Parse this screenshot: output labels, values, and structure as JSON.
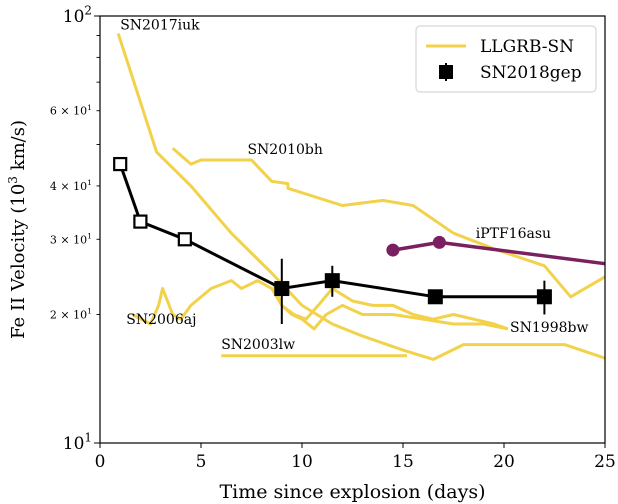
{
  "chart_data": {
    "type": "line",
    "xlabel": "Time since explosion (days)",
    "ylabel": "Fe II Velocity (10³ km/s)",
    "xlim": [
      0,
      25
    ],
    "ylim": [
      10,
      100
    ],
    "yscale": "log",
    "grid": false,
    "legend_position": "top-right",
    "x_ticks": [
      0,
      5,
      10,
      15,
      20,
      25
    ],
    "x_tick_labels": [
      "0",
      "5",
      "10",
      "15",
      "20",
      "25"
    ],
    "y_major_ticks": [
      10,
      100
    ],
    "y_major_labels": [
      {
        "base": "10",
        "exp": "1"
      },
      {
        "base": "10",
        "exp": "2"
      }
    ],
    "y_minor_ticks": [
      20,
      30,
      40,
      50,
      60,
      70,
      80,
      90
    ],
    "y_minor_labels": [
      {
        "value": 20,
        "base": "2 × 10",
        "exp": "1"
      },
      {
        "value": 30,
        "base": "3 × 10",
        "exp": "1"
      },
      {
        "value": 40,
        "base": "4 × 10",
        "exp": "1"
      },
      {
        "value": 60,
        "base": "6 × 10",
        "exp": "1"
      }
    ],
    "colors": {
      "llgrb": "#f2d24a",
      "sn2018gep": "#000000",
      "iptf": "#7a1f5f"
    },
    "legend": [
      {
        "label": "LLGRB-SN",
        "style": "line",
        "color": "#f2d24a"
      },
      {
        "label": "SN2018gep",
        "style": "marker-errorbar",
        "color": "#000000"
      }
    ],
    "series": [
      {
        "label": "SN2017iuk",
        "group": "LLGRB-SN",
        "color": "#f2d24a",
        "label_at": [
          1.0,
          93
        ],
        "label_anchor": "start",
        "points": [
          [
            0.9,
            91
          ],
          [
            2.8,
            48
          ],
          [
            4.5,
            40
          ],
          [
            6.5,
            31
          ],
          [
            8.5,
            25
          ],
          [
            10.0,
            21
          ],
          [
            11.5,
            19
          ],
          [
            13.0,
            17.8
          ],
          [
            15.0,
            16.5
          ],
          [
            16.5,
            15.7
          ],
          [
            18.0,
            17
          ],
          [
            20.0,
            17
          ],
          [
            23.0,
            17
          ],
          [
            25.0,
            15.8
          ]
        ]
      },
      {
        "label": "SN2010bh",
        "group": "LLGRB-SN",
        "color": "#f2d24a",
        "label_at": [
          7.3,
          47.5
        ],
        "label_anchor": "start",
        "points": [
          [
            3.6,
            49
          ],
          [
            4.5,
            45
          ],
          [
            5.0,
            46
          ],
          [
            7.5,
            46
          ],
          [
            8.5,
            41
          ],
          [
            9.3,
            40.5
          ],
          [
            9.3,
            39.5
          ],
          [
            12.0,
            36
          ],
          [
            14.0,
            37
          ],
          [
            15.5,
            36
          ],
          [
            17.5,
            31
          ],
          [
            19.5,
            28.5
          ],
          [
            22.0,
            26
          ],
          [
            23.3,
            22
          ],
          [
            25.0,
            24.5
          ]
        ]
      },
      {
        "label": "SN2006aj",
        "group": "LLGRB-SN",
        "color": "#f2d24a",
        "label_at": [
          1.3,
          19.0
        ],
        "label_anchor": "start",
        "points": [
          [
            1.6,
            20
          ],
          [
            2.5,
            19
          ],
          [
            2.9,
            21
          ],
          [
            3.1,
            23
          ],
          [
            3.6,
            20
          ],
          [
            4.0,
            19.5
          ],
          [
            4.5,
            21
          ],
          [
            5.5,
            23
          ],
          [
            6.5,
            24
          ],
          [
            7.0,
            23
          ],
          [
            7.8,
            24
          ],
          [
            8.5,
            23
          ],
          [
            9.0,
            21
          ],
          [
            9.5,
            20
          ],
          [
            10.0,
            19.5
          ],
          [
            10.6,
            18.5
          ],
          [
            11.2,
            20
          ],
          [
            12.0,
            21
          ],
          [
            13.0,
            20
          ],
          [
            14.5,
            20
          ],
          [
            16.0,
            19.5
          ],
          [
            17.5,
            19
          ],
          [
            19.0,
            19
          ],
          [
            20.2,
            18.5
          ]
        ]
      },
      {
        "label": "SN2003lw",
        "group": "LLGRB-SN",
        "color": "#f2d24a",
        "label_at": [
          6.0,
          16.6
        ],
        "label_anchor": "start",
        "points": [
          [
            6.0,
            16
          ],
          [
            8.0,
            16
          ],
          [
            10.0,
            16
          ],
          [
            12.5,
            16
          ],
          [
            15.2,
            16
          ]
        ]
      },
      {
        "label": "SN1998bw",
        "group": "LLGRB-SN",
        "color": "#f2d24a",
        "label_at": [
          20.3,
          18.2
        ],
        "label_anchor": "start",
        "points": [
          [
            8.6,
            23.5
          ],
          [
            9.0,
            21
          ],
          [
            9.6,
            20
          ],
          [
            10.2,
            19.5
          ],
          [
            10.8,
            21
          ],
          [
            11.5,
            23
          ],
          [
            12.5,
            21.5
          ],
          [
            13.5,
            21
          ],
          [
            14.5,
            21
          ],
          [
            15.5,
            20
          ],
          [
            16.5,
            19.5
          ],
          [
            17.5,
            20
          ],
          [
            18.5,
            19.5
          ],
          [
            19.5,
            19
          ],
          [
            20.2,
            18.5
          ]
        ]
      },
      {
        "label": "iPTF16asu",
        "group": "iPTF16asu",
        "color": "#7a1f5f",
        "label_at": [
          18.6,
          30.2
        ],
        "label_anchor": "start",
        "points": [
          [
            14.5,
            28.3
          ],
          [
            16.8,
            29.5
          ],
          [
            25.0,
            26.3
          ]
        ],
        "markers": [
          [
            14.5,
            28.3
          ],
          [
            16.8,
            29.5
          ]
        ]
      }
    ],
    "sn2018gep": {
      "label": "SN2018gep",
      "points": [
        {
          "x": 1.0,
          "y": 45.0,
          "filled": false,
          "err": null
        },
        {
          "x": 2.0,
          "y": 33.0,
          "filled": false,
          "err": null
        },
        {
          "x": 4.2,
          "y": 30.0,
          "filled": false,
          "err": null
        },
        {
          "x": 9.0,
          "y": 23.0,
          "filled": true,
          "err": [
            19.0,
            27.0
          ]
        },
        {
          "x": 11.5,
          "y": 24.0,
          "filled": true,
          "err": [
            22.0,
            26.0
          ]
        },
        {
          "x": 16.6,
          "y": 22.0,
          "filled": true,
          "err": [
            21.2,
            22.8
          ]
        },
        {
          "x": 22.0,
          "y": 22.0,
          "filled": true,
          "err": [
            20.0,
            24.0
          ]
        }
      ]
    }
  }
}
